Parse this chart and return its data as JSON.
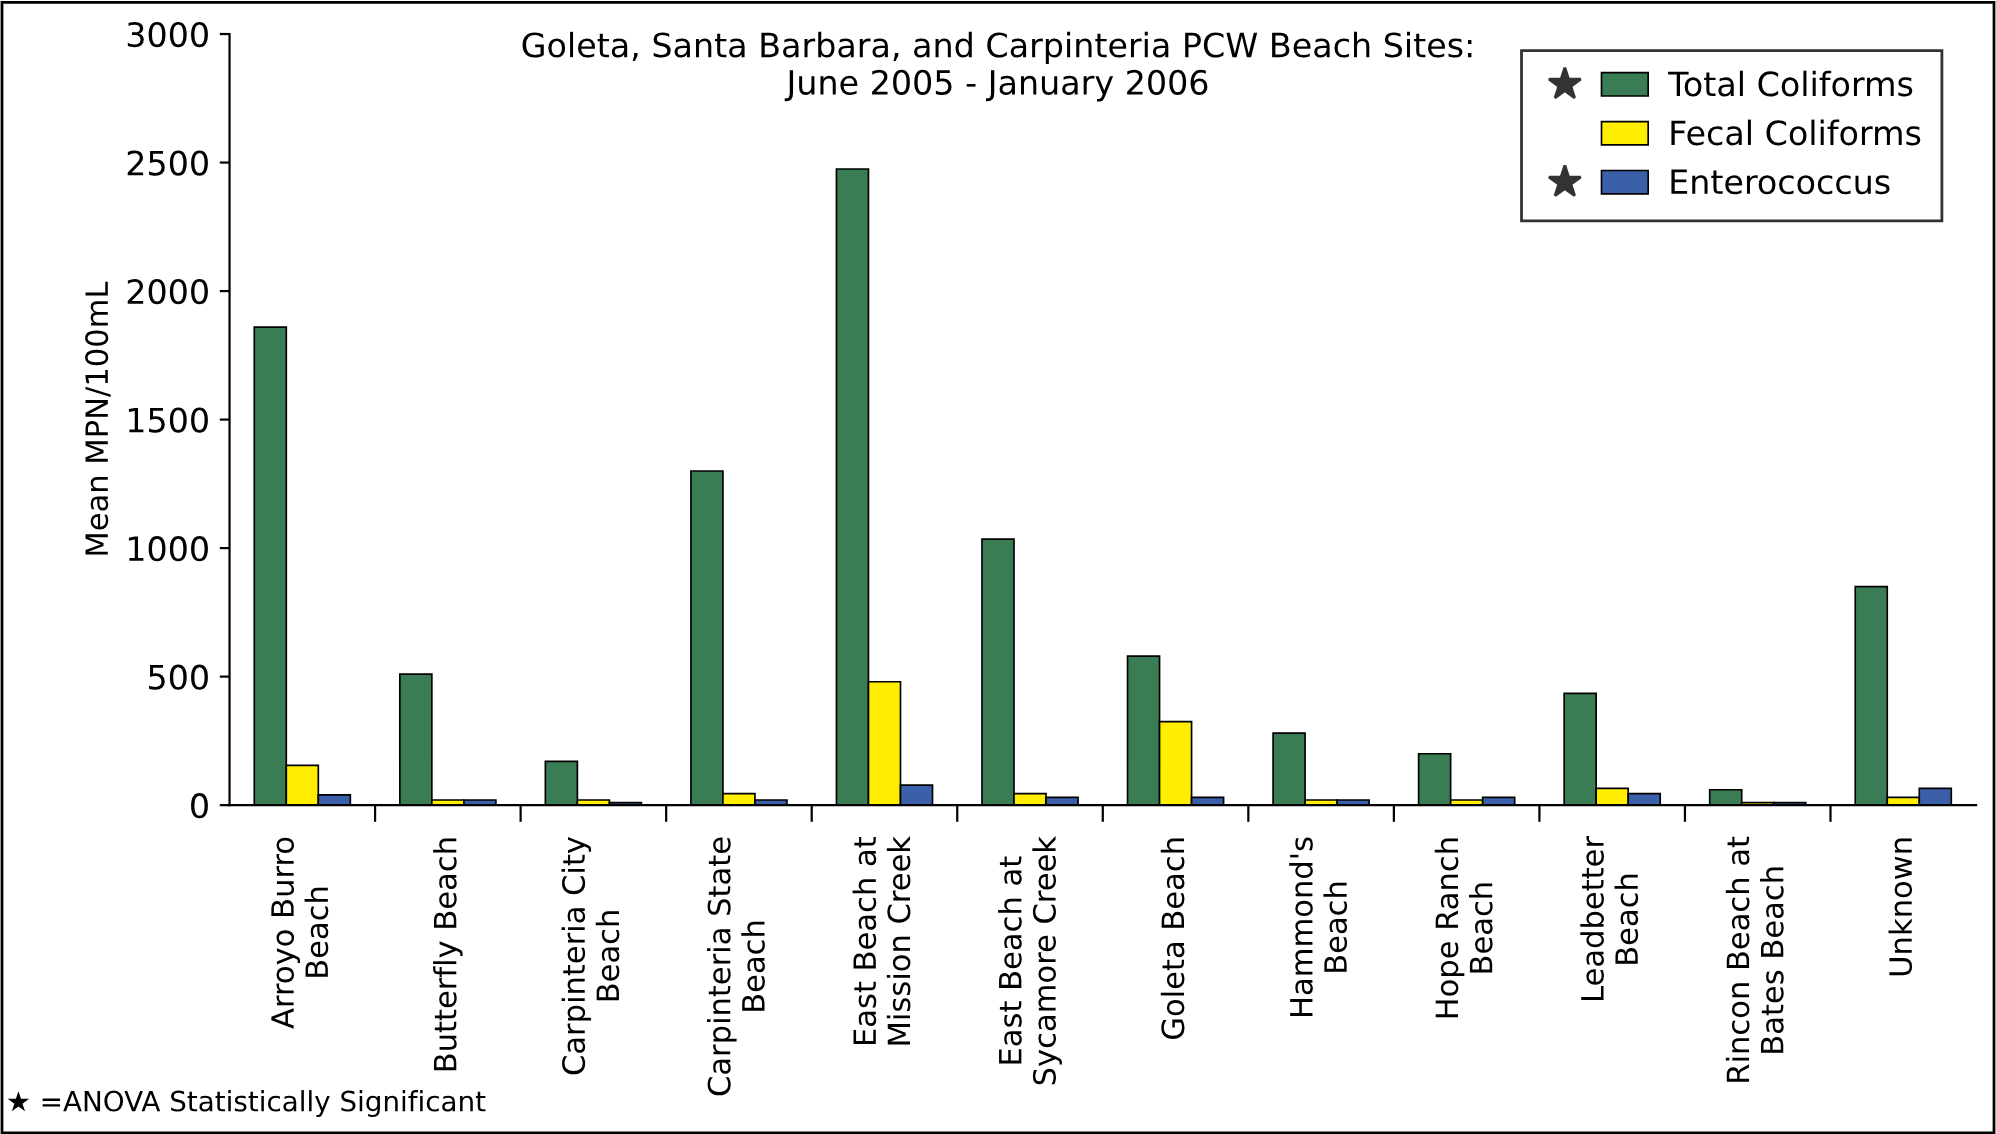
{
  "chart_data": {
    "type": "bar",
    "title": "Goleta, Santa Barbara, and Carpinteria PCW Beach Sites:\nJune 2005 - January 2006",
    "ylabel": "Mean MPN/100mL",
    "categories": [
      "Arroyo Burro\nBeach",
      "Butterfly Beach",
      "Carpinteria City\nBeach",
      "Carpinteria State\nBeach",
      "East Beach at\nMission Creek",
      "East Beach at\nSycamore Creek",
      "Goleta Beach",
      "Hammond's\nBeach",
      "Hope Ranch\nBeach",
      "Leadbetter\nBeach",
      "Rincon Beach at\nBates Beach",
      "Unknown"
    ],
    "series": [
      {
        "name": "Total Coliforms",
        "color": "#3a7d55",
        "values": [
          1860,
          510,
          170,
          1300,
          2475,
          1035,
          580,
          280,
          200,
          435,
          60,
          850
        ]
      },
      {
        "name": "Fecal Coliforms",
        "color": "#ffee00",
        "values": [
          155,
          20,
          20,
          45,
          480,
          45,
          325,
          20,
          20,
          65,
          10,
          30
        ]
      },
      {
        "name": "Enterococcus",
        "color": "#3b5fa8",
        "values": [
          40,
          20,
          10,
          20,
          78,
          30,
          30,
          20,
          30,
          45,
          10,
          65
        ]
      }
    ],
    "ylim": [
      0,
      3000
    ],
    "yticks": [
      0,
      500,
      1000,
      1500,
      2000,
      2500,
      3000
    ],
    "grid": false,
    "legend": "top right",
    "annotations": [
      "★ =ANOVA Statistically Significant"
    ]
  }
}
